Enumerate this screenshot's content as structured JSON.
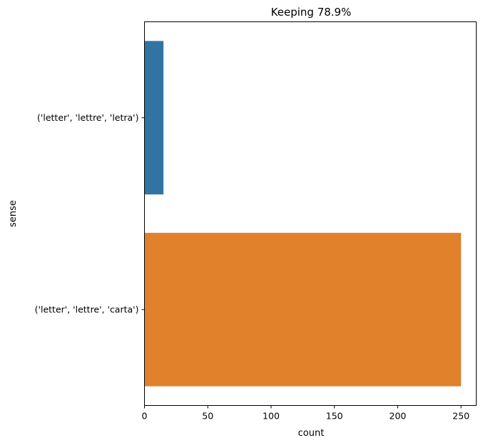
{
  "chart_data": {
    "type": "bar",
    "orientation": "horizontal",
    "title": "Keeping 78.9%",
    "xlabel": "count",
    "ylabel": "sense",
    "categories": [
      "('letter', 'lettre', 'letra')",
      "('letter', 'lettre', 'carta')"
    ],
    "values": [
      15,
      250
    ],
    "colors": [
      "#3274a1",
      "#e1812c"
    ],
    "xlim": [
      0,
      262
    ],
    "xticks": [
      0,
      50,
      100,
      150,
      200,
      250
    ],
    "grid": false,
    "legend": "none"
  }
}
